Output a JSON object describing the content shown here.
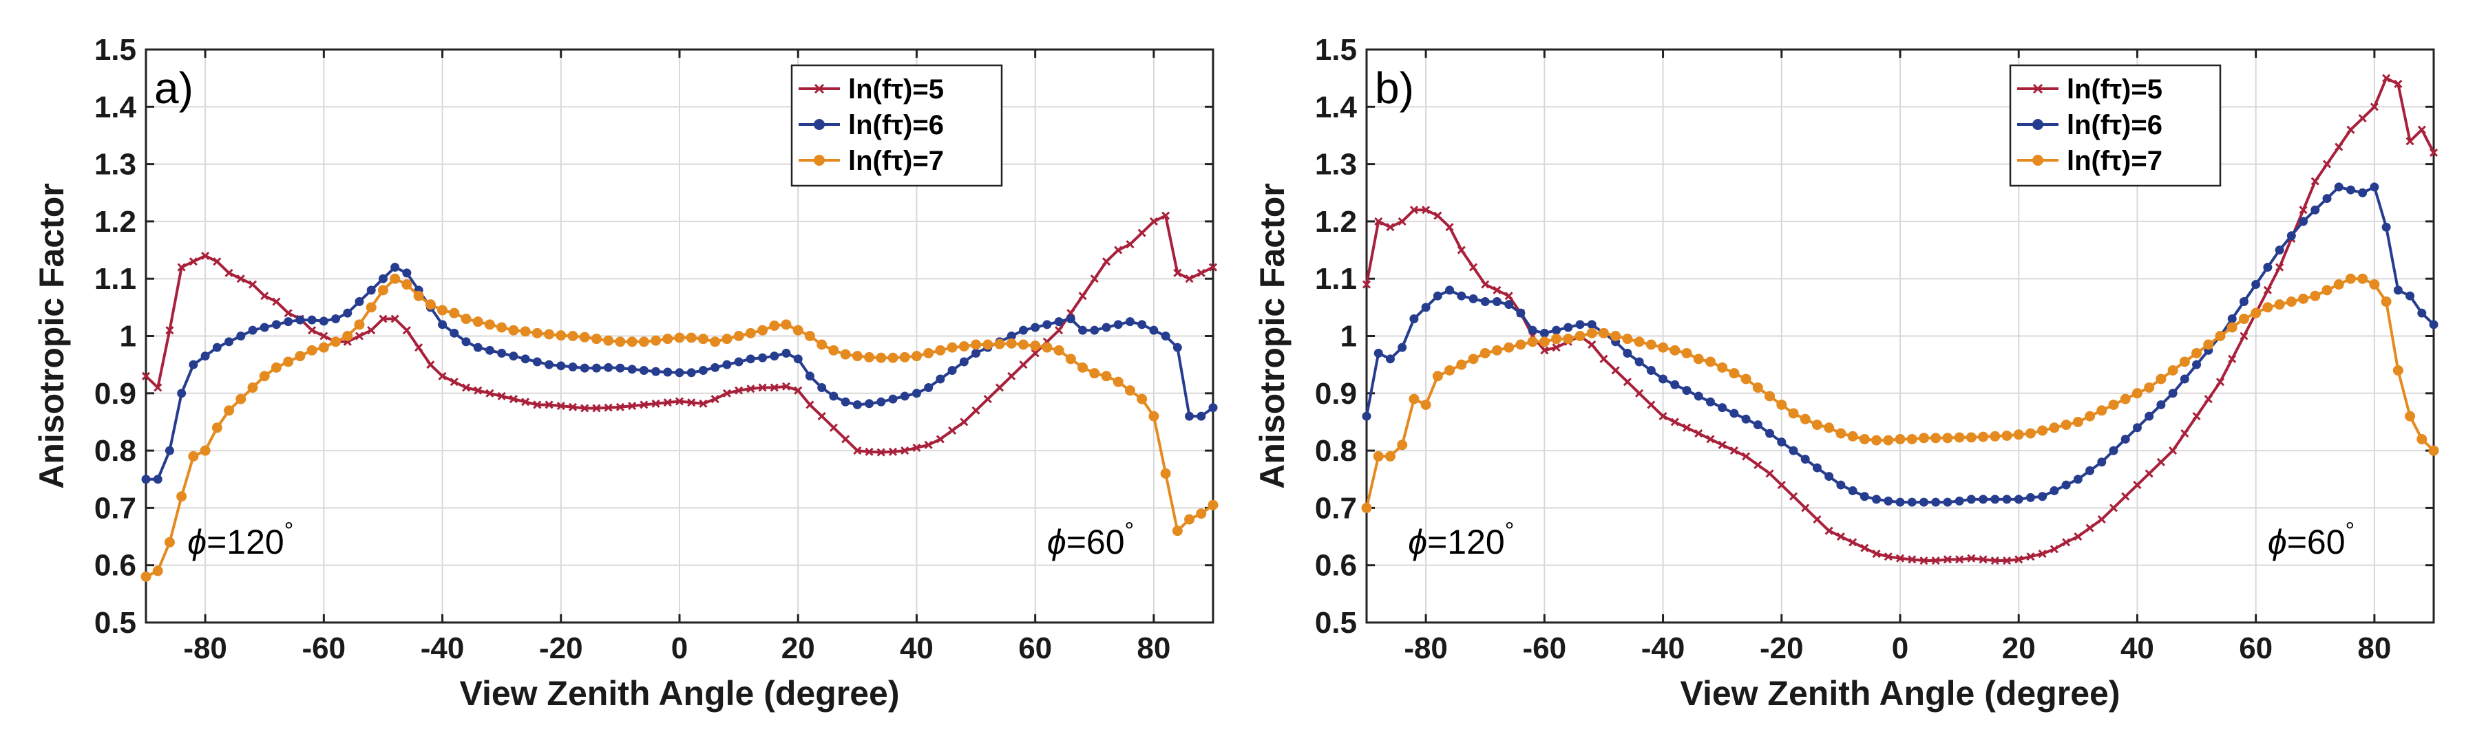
{
  "chart_data": [
    {
      "type": "line",
      "panel_label": "a)",
      "xlabel": "View Zenith Angle (degree)",
      "ylabel": "Anisotropic Factor",
      "xlim": [
        -90,
        90
      ],
      "ylim": [
        0.5,
        1.5
      ],
      "xticks": [
        -80,
        -60,
        -40,
        -20,
        0,
        20,
        40,
        60,
        80
      ],
      "yticks": [
        0.5,
        0.6,
        0.7,
        0.8,
        0.9,
        1,
        1.1,
        1.2,
        1.3,
        1.4,
        1.5
      ],
      "ytick_labels": [
        "0.5",
        "0.6",
        "0.7",
        "0.8",
        "0.9",
        "1",
        "1.1",
        "1.2",
        "1.3",
        "1.4",
        "1.5"
      ],
      "xtick_labels": [
        "-80",
        "-60",
        "-40",
        "-20",
        "0",
        "20",
        "40",
        "60",
        "80"
      ],
      "grid": true,
      "legend_position": "top-right",
      "annotations": [
        {
          "phi": "ϕ",
          "text": "=120",
          "deg": "°",
          "x": -83,
          "y": 0.62
        },
        {
          "phi": "ϕ",
          "text": "=60",
          "deg": "°",
          "x": 62,
          "y": 0.62
        }
      ],
      "x": [
        -90,
        -88,
        -86,
        -84,
        -82,
        -80,
        -78,
        -76,
        -74,
        -72,
        -70,
        -68,
        -66,
        -64,
        -62,
        -60,
        -58,
        -56,
        -54,
        -52,
        -50,
        -48,
        -46,
        -44,
        -42,
        -40,
        -38,
        -36,
        -34,
        -32,
        -30,
        -28,
        -26,
        -24,
        -22,
        -20,
        -18,
        -16,
        -14,
        -12,
        -10,
        -8,
        -6,
        -4,
        -2,
        0,
        2,
        4,
        6,
        8,
        10,
        12,
        14,
        16,
        18,
        20,
        22,
        24,
        26,
        28,
        30,
        32,
        34,
        36,
        38,
        40,
        42,
        44,
        46,
        48,
        50,
        52,
        54,
        56,
        58,
        60,
        62,
        64,
        66,
        68,
        70,
        72,
        74,
        76,
        78,
        80,
        82,
        84,
        86,
        88,
        90
      ],
      "series": [
        {
          "name": "ln(fτ)=5",
          "color": "#a8203a",
          "marker": "x",
          "values": [
            0.93,
            0.91,
            1.01,
            1.12,
            1.13,
            1.14,
            1.13,
            1.11,
            1.1,
            1.09,
            1.07,
            1.06,
            1.04,
            1.03,
            1.01,
            1.0,
            0.99,
            0.99,
            1.0,
            1.01,
            1.03,
            1.03,
            1.01,
            0.98,
            0.95,
            0.93,
            0.92,
            0.91,
            0.905,
            0.9,
            0.895,
            0.89,
            0.885,
            0.88,
            0.88,
            0.878,
            0.876,
            0.874,
            0.874,
            0.875,
            0.876,
            0.878,
            0.88,
            0.882,
            0.884,
            0.886,
            0.884,
            0.882,
            0.89,
            0.9,
            0.905,
            0.908,
            0.91,
            0.91,
            0.912,
            0.905,
            0.88,
            0.86,
            0.84,
            0.82,
            0.8,
            0.798,
            0.797,
            0.798,
            0.8,
            0.805,
            0.81,
            0.82,
            0.835,
            0.85,
            0.87,
            0.89,
            0.91,
            0.93,
            0.95,
            0.97,
            0.99,
            1.01,
            1.04,
            1.07,
            1.1,
            1.13,
            1.15,
            1.16,
            1.18,
            1.2,
            1.21,
            1.11,
            1.1,
            1.11,
            1.12
          ]
        },
        {
          "name": "ln(fτ)=6",
          "color": "#263d8f",
          "marker": "o",
          "values": [
            0.75,
            0.75,
            0.8,
            0.9,
            0.95,
            0.965,
            0.98,
            0.99,
            1.0,
            1.01,
            1.015,
            1.02,
            1.025,
            1.028,
            1.028,
            1.026,
            1.03,
            1.04,
            1.06,
            1.08,
            1.1,
            1.12,
            1.11,
            1.08,
            1.05,
            1.02,
            1.005,
            0.99,
            0.98,
            0.975,
            0.97,
            0.965,
            0.96,
            0.955,
            0.95,
            0.948,
            0.946,
            0.944,
            0.944,
            0.945,
            0.944,
            0.942,
            0.94,
            0.938,
            0.937,
            0.936,
            0.936,
            0.94,
            0.945,
            0.95,
            0.955,
            0.96,
            0.962,
            0.965,
            0.97,
            0.96,
            0.93,
            0.91,
            0.895,
            0.885,
            0.88,
            0.882,
            0.885,
            0.89,
            0.895,
            0.9,
            0.91,
            0.925,
            0.94,
            0.955,
            0.97,
            0.98,
            0.99,
            1.0,
            1.01,
            1.015,
            1.02,
            1.025,
            1.03,
            1.01,
            1.01,
            1.015,
            1.02,
            1.025,
            1.02,
            1.01,
            1.0,
            0.98,
            0.86,
            0.86,
            0.875
          ]
        },
        {
          "name": "ln(fτ)=7",
          "color": "#e58a1f",
          "marker": "o",
          "values": [
            0.58,
            0.59,
            0.64,
            0.72,
            0.79,
            0.8,
            0.84,
            0.87,
            0.89,
            0.91,
            0.93,
            0.945,
            0.955,
            0.965,
            0.975,
            0.98,
            0.99,
            1.0,
            1.02,
            1.05,
            1.08,
            1.1,
            1.09,
            1.07,
            1.055,
            1.045,
            1.04,
            1.03,
            1.025,
            1.02,
            1.015,
            1.01,
            1.008,
            1.005,
            1.003,
            1.001,
            1.0,
            0.998,
            0.995,
            0.992,
            0.99,
            0.99,
            0.99,
            0.992,
            0.995,
            0.997,
            0.997,
            0.995,
            0.99,
            0.995,
            1.0,
            1.005,
            1.01,
            1.018,
            1.02,
            1.01,
            1.0,
            0.985,
            0.975,
            0.968,
            0.965,
            0.963,
            0.962,
            0.962,
            0.963,
            0.965,
            0.97,
            0.975,
            0.98,
            0.982,
            0.985,
            0.985,
            0.986,
            0.987,
            0.985,
            0.983,
            0.98,
            0.975,
            0.96,
            0.945,
            0.935,
            0.93,
            0.92,
            0.905,
            0.89,
            0.86,
            0.76,
            0.66,
            0.68,
            0.69,
            0.705
          ]
        }
      ]
    },
    {
      "type": "line",
      "panel_label": "b)",
      "xlabel": "View Zenith Angle (degree)",
      "ylabel": "Anisotropic Factor",
      "xlim": [
        -90,
        90
      ],
      "ylim": [
        0.5,
        1.5
      ],
      "xticks": [
        -80,
        -60,
        -40,
        -20,
        0,
        20,
        40,
        60,
        80
      ],
      "yticks": [
        0.5,
        0.6,
        0.7,
        0.8,
        0.9,
        1,
        1.1,
        1.2,
        1.3,
        1.4,
        1.5
      ],
      "ytick_labels": [
        "0.5",
        "0.6",
        "0.7",
        "0.8",
        "0.9",
        "1",
        "1.1",
        "1.2",
        "1.3",
        "1.4",
        "1.5"
      ],
      "xtick_labels": [
        "-80",
        "-60",
        "-40",
        "-20",
        "0",
        "20",
        "40",
        "60",
        "80"
      ],
      "grid": true,
      "legend_position": "top-right",
      "annotations": [
        {
          "phi": "ϕ",
          "text": "=120",
          "deg": "°",
          "x": -83,
          "y": 0.62
        },
        {
          "phi": "ϕ",
          "text": "=60",
          "deg": "°",
          "x": 62,
          "y": 0.62
        }
      ],
      "x": [
        -90,
        -88,
        -86,
        -84,
        -82,
        -80,
        -78,
        -76,
        -74,
        -72,
        -70,
        -68,
        -66,
        -64,
        -62,
        -60,
        -58,
        -56,
        -54,
        -52,
        -50,
        -48,
        -46,
        -44,
        -42,
        -40,
        -38,
        -36,
        -34,
        -32,
        -30,
        -28,
        -26,
        -24,
        -22,
        -20,
        -18,
        -16,
        -14,
        -12,
        -10,
        -8,
        -6,
        -4,
        -2,
        0,
        2,
        4,
        6,
        8,
        10,
        12,
        14,
        16,
        18,
        20,
        22,
        24,
        26,
        28,
        30,
        32,
        34,
        36,
        38,
        40,
        42,
        44,
        46,
        48,
        50,
        52,
        54,
        56,
        58,
        60,
        62,
        64,
        66,
        68,
        70,
        72,
        74,
        76,
        78,
        80,
        82,
        84,
        86,
        88,
        90
      ],
      "series": [
        {
          "name": "ln(fτ)=5",
          "color": "#a8203a",
          "marker": "x",
          "values": [
            1.09,
            1.2,
            1.19,
            1.2,
            1.22,
            1.22,
            1.21,
            1.19,
            1.15,
            1.12,
            1.09,
            1.08,
            1.07,
            1.04,
            1.0,
            0.975,
            0.98,
            0.99,
            1.0,
            0.985,
            0.96,
            0.94,
            0.92,
            0.9,
            0.88,
            0.86,
            0.85,
            0.84,
            0.83,
            0.82,
            0.81,
            0.8,
            0.79,
            0.775,
            0.76,
            0.74,
            0.72,
            0.7,
            0.68,
            0.66,
            0.65,
            0.64,
            0.63,
            0.62,
            0.615,
            0.612,
            0.61,
            0.608,
            0.608,
            0.61,
            0.61,
            0.612,
            0.61,
            0.608,
            0.608,
            0.61,
            0.615,
            0.62,
            0.628,
            0.64,
            0.65,
            0.665,
            0.68,
            0.7,
            0.72,
            0.74,
            0.76,
            0.78,
            0.8,
            0.83,
            0.86,
            0.89,
            0.92,
            0.96,
            1.0,
            1.04,
            1.08,
            1.12,
            1.17,
            1.22,
            1.27,
            1.3,
            1.33,
            1.36,
            1.38,
            1.4,
            1.45,
            1.44,
            1.34,
            1.36,
            1.32
          ]
        },
        {
          "name": "ln(fτ)=6",
          "color": "#263d8f",
          "marker": "o",
          "values": [
            0.86,
            0.97,
            0.96,
            0.98,
            1.03,
            1.05,
            1.07,
            1.08,
            1.07,
            1.065,
            1.06,
            1.06,
            1.055,
            1.04,
            1.01,
            1.005,
            1.01,
            1.015,
            1.02,
            1.02,
            1.005,
            0.99,
            0.97,
            0.955,
            0.94,
            0.925,
            0.915,
            0.905,
            0.895,
            0.885,
            0.875,
            0.865,
            0.855,
            0.845,
            0.83,
            0.815,
            0.8,
            0.785,
            0.77,
            0.755,
            0.74,
            0.73,
            0.72,
            0.715,
            0.712,
            0.71,
            0.71,
            0.71,
            0.71,
            0.71,
            0.712,
            0.715,
            0.715,
            0.715,
            0.715,
            0.715,
            0.718,
            0.72,
            0.73,
            0.74,
            0.75,
            0.765,
            0.78,
            0.8,
            0.82,
            0.84,
            0.86,
            0.88,
            0.9,
            0.925,
            0.95,
            0.975,
            1.0,
            1.03,
            1.06,
            1.09,
            1.12,
            1.15,
            1.175,
            1.2,
            1.22,
            1.24,
            1.26,
            1.255,
            1.25,
            1.26,
            1.19,
            1.08,
            1.07,
            1.04,
            1.02
          ]
        },
        {
          "name": "ln(fτ)=7",
          "color": "#e58a1f",
          "marker": "o",
          "values": [
            0.7,
            0.79,
            0.79,
            0.81,
            0.89,
            0.88,
            0.93,
            0.94,
            0.95,
            0.96,
            0.97,
            0.975,
            0.98,
            0.985,
            0.99,
            0.99,
            0.995,
            0.995,
            1.0,
            1.005,
            1.005,
            1.0,
            0.995,
            0.99,
            0.985,
            0.98,
            0.975,
            0.97,
            0.96,
            0.955,
            0.945,
            0.935,
            0.925,
            0.91,
            0.895,
            0.88,
            0.865,
            0.855,
            0.845,
            0.84,
            0.83,
            0.825,
            0.82,
            0.818,
            0.818,
            0.82,
            0.82,
            0.822,
            0.822,
            0.822,
            0.823,
            0.823,
            0.824,
            0.825,
            0.826,
            0.828,
            0.83,
            0.835,
            0.84,
            0.845,
            0.85,
            0.86,
            0.87,
            0.88,
            0.89,
            0.9,
            0.91,
            0.925,
            0.94,
            0.955,
            0.97,
            0.985,
            1.0,
            1.015,
            1.03,
            1.04,
            1.05,
            1.055,
            1.06,
            1.065,
            1.07,
            1.08,
            1.09,
            1.1,
            1.1,
            1.09,
            1.06,
            0.94,
            0.86,
            0.82,
            0.8
          ]
        }
      ]
    }
  ]
}
